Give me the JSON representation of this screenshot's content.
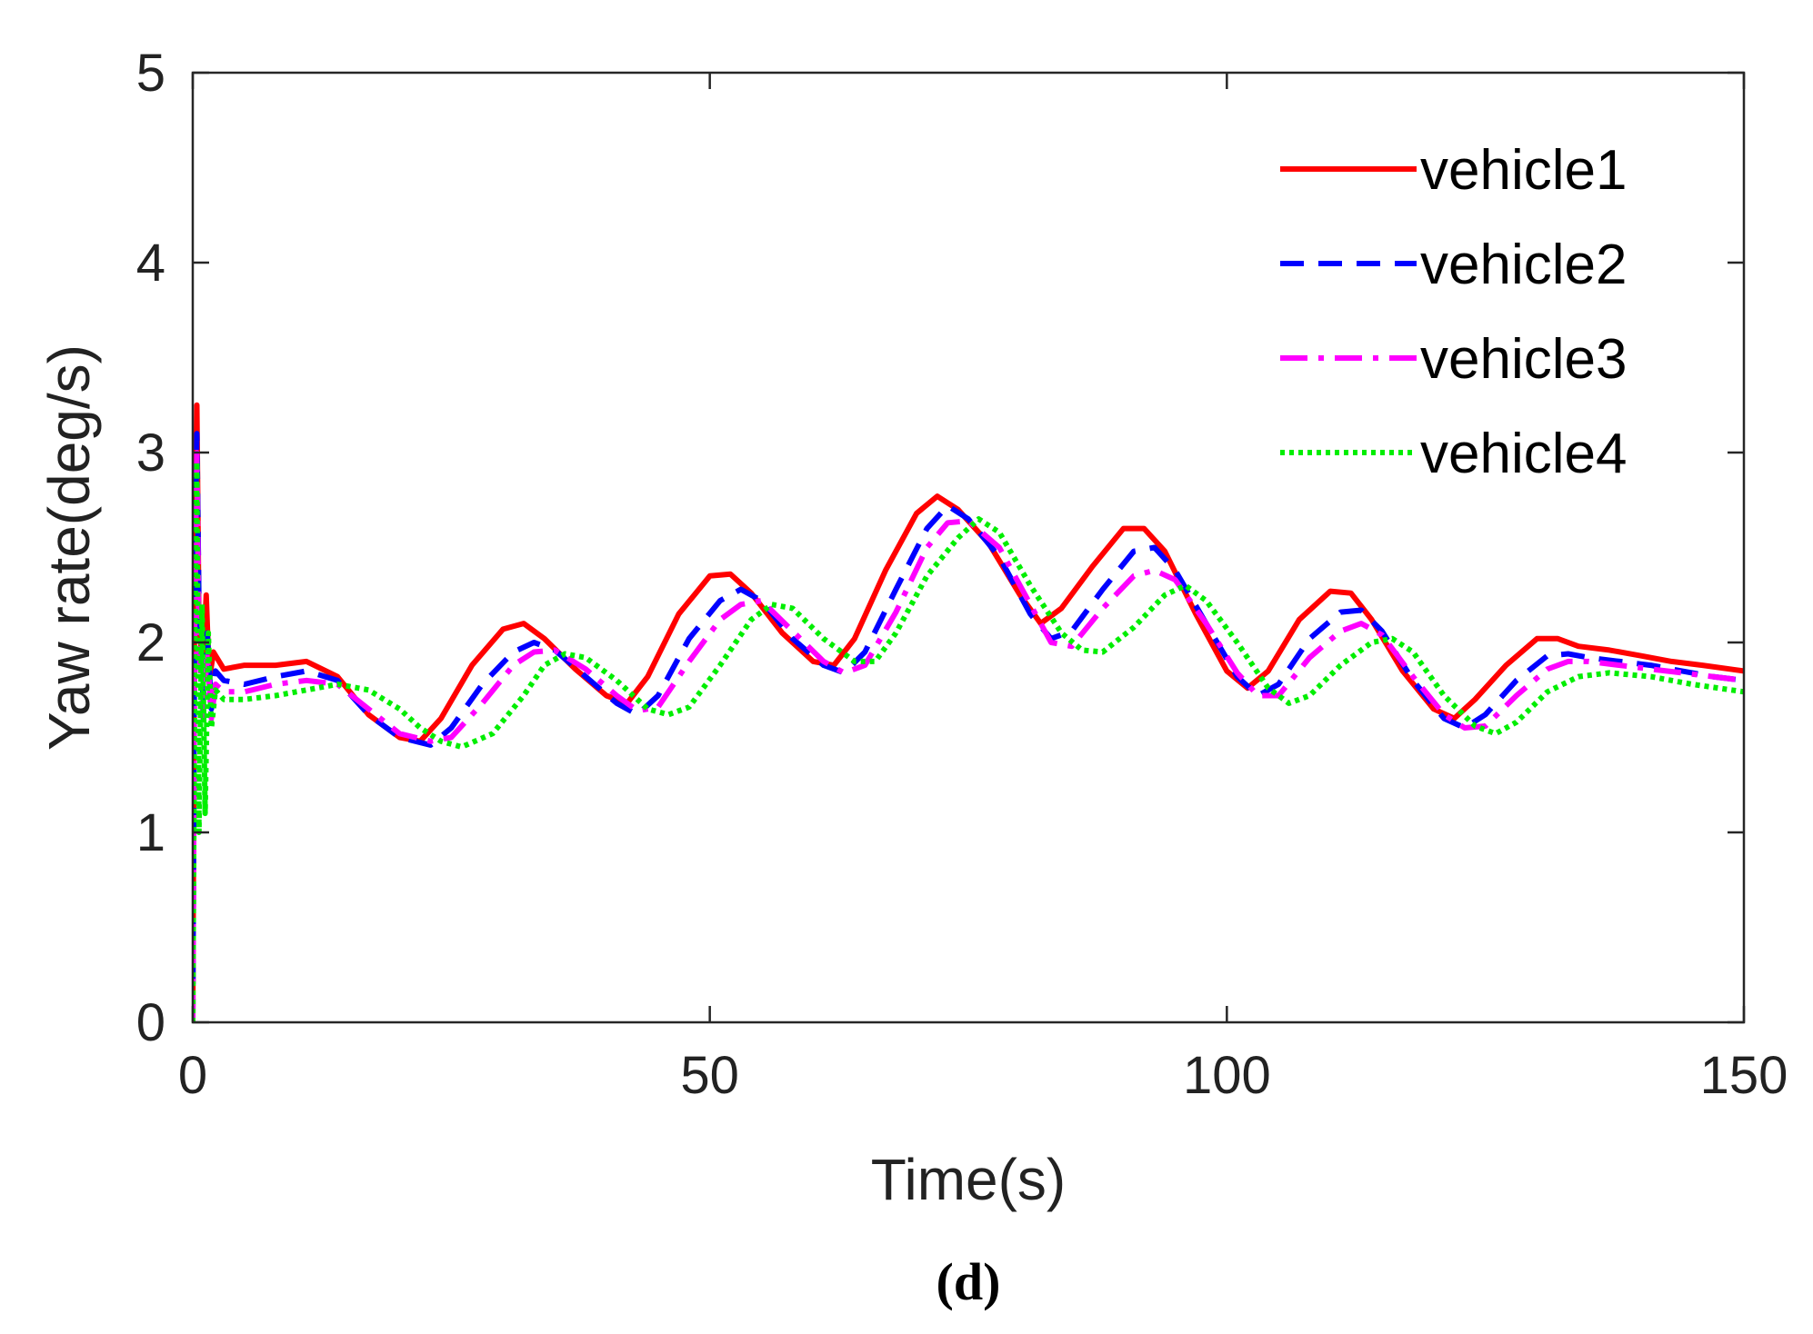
{
  "chart_data": {
    "type": "line",
    "title": "",
    "xlabel": "Time(s)",
    "ylabel": "Yaw rate(deg/s)",
    "panel_label": "(d)",
    "xlim": [
      0,
      150
    ],
    "ylim": [
      0,
      5
    ],
    "xticks": [
      0,
      50,
      100,
      150
    ],
    "yticks": [
      0,
      1,
      2,
      3,
      4,
      5
    ],
    "grid": false,
    "legend_position": "top-right",
    "series": [
      {
        "name": "vehicle1",
        "color": "#ff0000",
        "style": "solid",
        "x": [
          0,
          0.2,
          0.4,
          0.6,
          1.0,
          1.3,
          1.6,
          2.0,
          3,
          5,
          8,
          11,
          14,
          17,
          20,
          22,
          24,
          27,
          30,
          32,
          34,
          37,
          40,
          42,
          44,
          47,
          50,
          52,
          54,
          57,
          60,
          62,
          64,
          67,
          70,
          72,
          74,
          77,
          80,
          82,
          84,
          87,
          90,
          92,
          94,
          97,
          100,
          102,
          104,
          107,
          110,
          112,
          114,
          117,
          120,
          122,
          124,
          127,
          130,
          132,
          134,
          137,
          140,
          143,
          146,
          150
        ],
        "y": [
          0,
          2.6,
          3.25,
          2.1,
          1.85,
          2.25,
          1.8,
          1.95,
          1.86,
          1.88,
          1.88,
          1.9,
          1.82,
          1.62,
          1.5,
          1.48,
          1.6,
          1.88,
          2.07,
          2.1,
          2.02,
          1.86,
          1.72,
          1.68,
          1.82,
          2.15,
          2.35,
          2.36,
          2.26,
          2.05,
          1.9,
          1.88,
          2.02,
          2.38,
          2.68,
          2.77,
          2.7,
          2.52,
          2.25,
          2.1,
          2.18,
          2.4,
          2.6,
          2.6,
          2.48,
          2.15,
          1.85,
          1.76,
          1.85,
          2.12,
          2.27,
          2.26,
          2.12,
          1.85,
          1.65,
          1.6,
          1.7,
          1.88,
          2.02,
          2.02,
          1.98,
          1.96,
          1.93,
          1.9,
          1.88,
          1.85
        ]
      },
      {
        "name": "vehicle2",
        "color": "#0000ff",
        "style": "dashed",
        "x": [
          0,
          0.2,
          0.4,
          0.6,
          1.0,
          1.4,
          1.8,
          2.2,
          3,
          5,
          8,
          11,
          14,
          17,
          20,
          23,
          25,
          28,
          31,
          33,
          35,
          38,
          41,
          43,
          45,
          48,
          51,
          53,
          55,
          58,
          61,
          63,
          65,
          68,
          71,
          73,
          75,
          78,
          81,
          83,
          85,
          88,
          91,
          93,
          95,
          98,
          101,
          103,
          105,
          108,
          111,
          113,
          115,
          118,
          121,
          123,
          125,
          128,
          131,
          133,
          135,
          138,
          141,
          144,
          147,
          150
        ],
        "y": [
          0,
          2.4,
          3.1,
          2.2,
          1.7,
          2.05,
          1.65,
          1.85,
          1.8,
          1.78,
          1.82,
          1.85,
          1.8,
          1.62,
          1.5,
          1.46,
          1.55,
          1.78,
          1.95,
          2.0,
          1.96,
          1.82,
          1.68,
          1.62,
          1.72,
          2.02,
          2.22,
          2.28,
          2.22,
          2.02,
          1.88,
          1.84,
          1.95,
          2.28,
          2.6,
          2.72,
          2.65,
          2.45,
          2.15,
          2.02,
          2.06,
          2.28,
          2.48,
          2.5,
          2.38,
          2.1,
          1.82,
          1.72,
          1.78,
          2.02,
          2.16,
          2.17,
          2.06,
          1.8,
          1.6,
          1.55,
          1.62,
          1.8,
          1.93,
          1.94,
          1.92,
          1.9,
          1.88,
          1.85,
          1.82,
          1.8
        ]
      },
      {
        "name": "vehicle3",
        "color": "#ff00ff",
        "style": "dashdot",
        "x": [
          0,
          0.2,
          0.4,
          0.6,
          1.0,
          1.4,
          1.8,
          2.2,
          3,
          5,
          8,
          11,
          14,
          17,
          20,
          23,
          25,
          28,
          31,
          33,
          35,
          38,
          41,
          43,
          45,
          48,
          51,
          53,
          55,
          58,
          61,
          63,
          65,
          68,
          71,
          73,
          75,
          78,
          81,
          83,
          85,
          88,
          91,
          93,
          95,
          98,
          101,
          103,
          105,
          108,
          111,
          113,
          115,
          118,
          121,
          123,
          125,
          128,
          131,
          133,
          135,
          138,
          141,
          144,
          147,
          150
        ],
        "y": [
          0,
          2.2,
          3.0,
          2.0,
          1.6,
          1.95,
          1.6,
          1.78,
          1.74,
          1.74,
          1.78,
          1.8,
          1.78,
          1.65,
          1.52,
          1.48,
          1.5,
          1.68,
          1.88,
          1.95,
          1.96,
          1.86,
          1.72,
          1.64,
          1.66,
          1.9,
          2.12,
          2.2,
          2.22,
          2.06,
          1.9,
          1.84,
          1.88,
          2.16,
          2.5,
          2.63,
          2.64,
          2.5,
          2.2,
          2.0,
          1.98,
          2.18,
          2.35,
          2.38,
          2.33,
          2.1,
          1.84,
          1.72,
          1.72,
          1.92,
          2.06,
          2.1,
          2.04,
          1.82,
          1.62,
          1.55,
          1.56,
          1.72,
          1.86,
          1.9,
          1.9,
          1.88,
          1.86,
          1.84,
          1.82,
          1.8
        ]
      },
      {
        "name": "vehicle4",
        "color": "#00ee00",
        "style": "dotted",
        "x": [
          0,
          0.2,
          0.4,
          0.6,
          0.9,
          1.2,
          1.5,
          1.8,
          2.2,
          3,
          5,
          8,
          11,
          14,
          17,
          20,
          22,
          24,
          26,
          29,
          32,
          34,
          36,
          38,
          41,
          44,
          46,
          48,
          51,
          54,
          56,
          58,
          61,
          64,
          66,
          68,
          71,
          74,
          76,
          78,
          81,
          84,
          86,
          88,
          91,
          94,
          96,
          98,
          101,
          104,
          106,
          108,
          111,
          114,
          116,
          118,
          121,
          124,
          126,
          128,
          131,
          134,
          137,
          141,
          145,
          150
        ],
        "y": [
          0,
          2.0,
          2.95,
          1.0,
          2.2,
          1.1,
          2.05,
          1.55,
          1.75,
          1.7,
          1.7,
          1.72,
          1.75,
          1.78,
          1.75,
          1.65,
          1.55,
          1.48,
          1.45,
          1.52,
          1.72,
          1.88,
          1.94,
          1.92,
          1.8,
          1.65,
          1.62,
          1.66,
          1.88,
          2.12,
          2.2,
          2.18,
          2.02,
          1.9,
          1.9,
          2.05,
          2.35,
          2.55,
          2.65,
          2.58,
          2.3,
          2.05,
          1.96,
          1.95,
          2.08,
          2.25,
          2.3,
          2.22,
          2.0,
          1.76,
          1.68,
          1.72,
          1.88,
          2.0,
          2.02,
          1.95,
          1.72,
          1.56,
          1.52,
          1.58,
          1.74,
          1.82,
          1.84,
          1.82,
          1.78,
          1.74
        ]
      }
    ]
  }
}
